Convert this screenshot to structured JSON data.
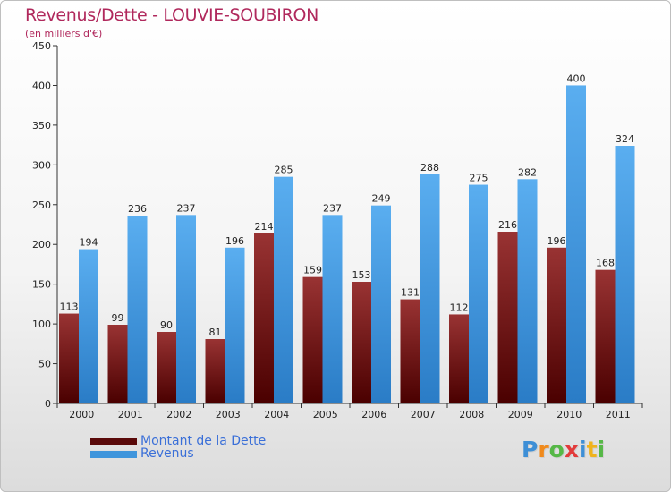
{
  "chart_data": {
    "type": "bar",
    "title": "Revenus/Dette - LOUVIE-SOUBIRON",
    "subtitle": "(en milliers d'€)",
    "xlabel": "",
    "ylabel": "",
    "categories": [
      "2000",
      "2001",
      "2002",
      "2003",
      "2004",
      "2005",
      "2006",
      "2007",
      "2008",
      "2009",
      "2010",
      "2011"
    ],
    "series": [
      {
        "name": "Montant de la Dette",
        "color": "#8b1a1a",
        "values": [
          113,
          99,
          90,
          81,
          214,
          159,
          153,
          131,
          112,
          216,
          196,
          168
        ]
      },
      {
        "name": "Revenus",
        "color": "#4aa2e6",
        "values": [
          194,
          236,
          237,
          196,
          285,
          237,
          249,
          288,
          275,
          282,
          400,
          324
        ]
      }
    ],
    "ylim": [
      0,
      450
    ],
    "yticks": [
      0,
      50,
      100,
      150,
      200,
      250,
      300,
      350,
      400,
      450
    ],
    "grid": false,
    "legend_position": "bottom-left"
  },
  "branding": {
    "logo_text": "Proxiti",
    "logo_letters": [
      {
        "ch": "P",
        "color": "#3e8fd6"
      },
      {
        "ch": "r",
        "color": "#f08a1c"
      },
      {
        "ch": "o",
        "color": "#56b847"
      },
      {
        "ch": "x",
        "color": "#e23b3b"
      },
      {
        "ch": "i",
        "color": "#3e8fd6"
      },
      {
        "ch": "t",
        "color": "#f0b31c"
      },
      {
        "ch": "i",
        "color": "#56b847"
      }
    ]
  }
}
